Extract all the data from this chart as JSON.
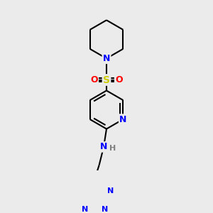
{
  "bg_color": "#ebebeb",
  "bond_color": "#000000",
  "atom_colors": {
    "N": "#0000ff",
    "S": "#cccc00",
    "O": "#ff0000",
    "C": "#000000",
    "H": "#7f7f7f"
  },
  "bond_width": 1.5,
  "fig_w": 3.0,
  "fig_h": 3.0,
  "dpi": 100
}
